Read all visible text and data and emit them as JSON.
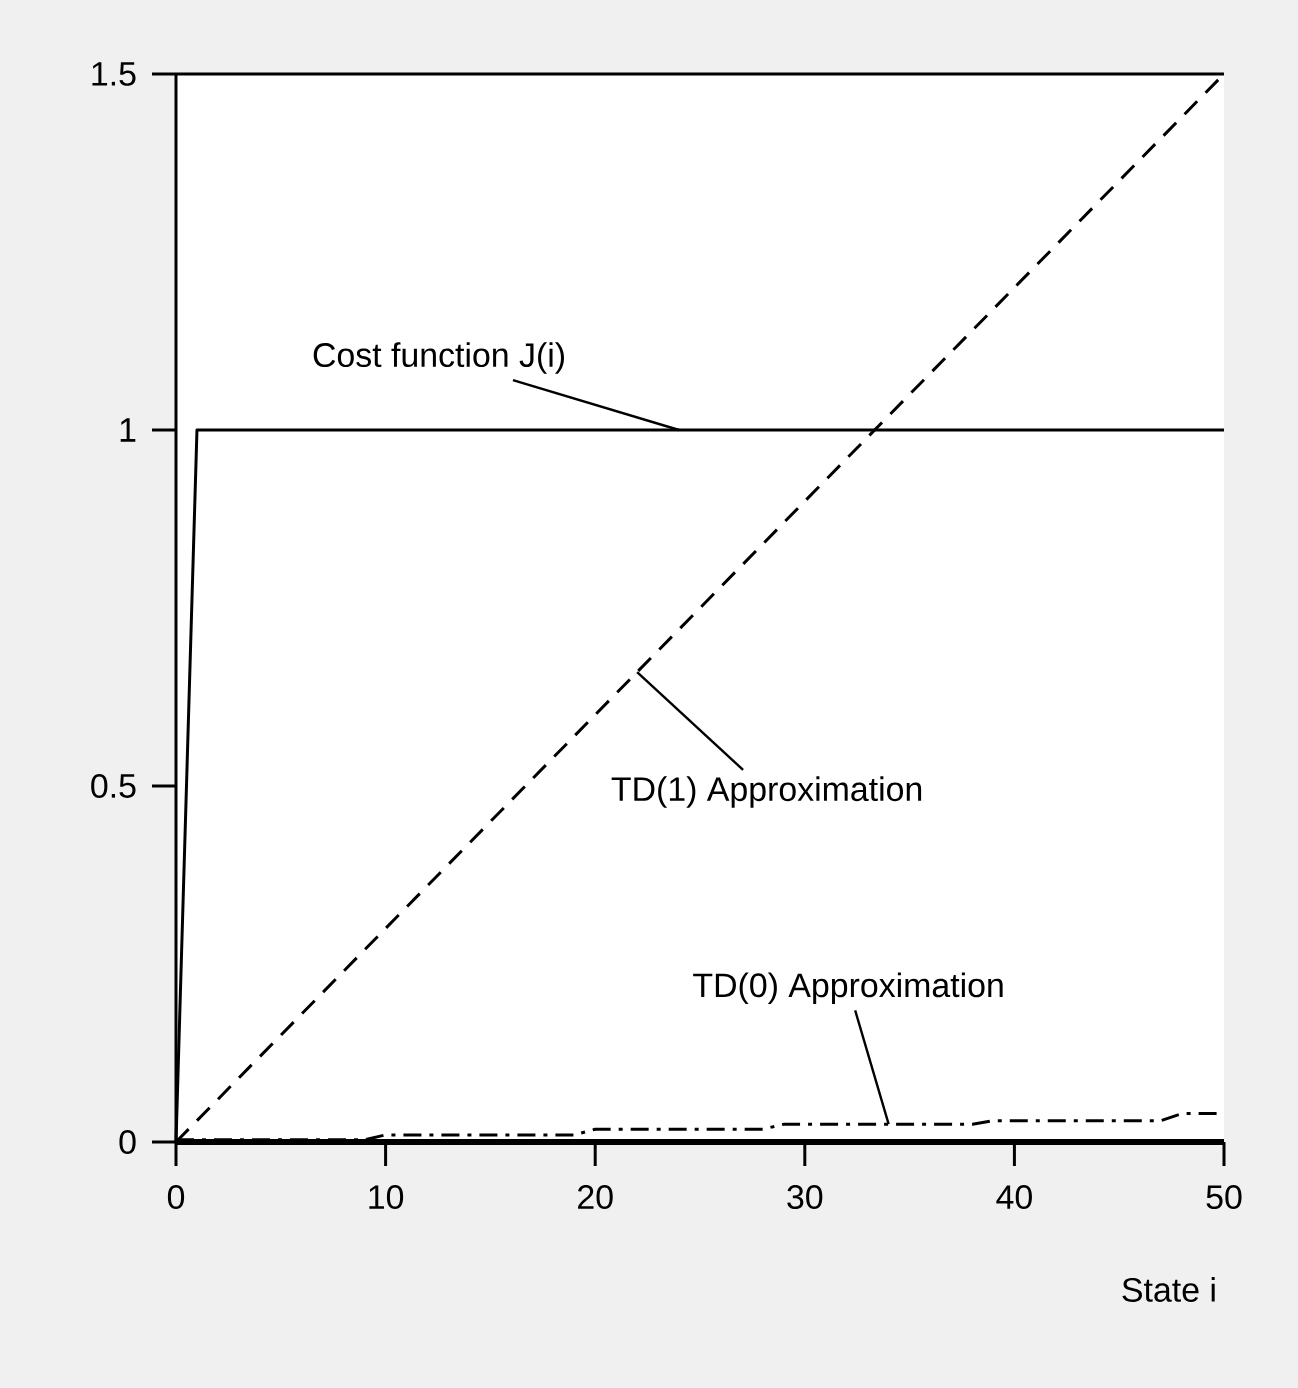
{
  "chart_data": {
    "type": "line",
    "xlabel": "State i",
    "xlim": [
      0,
      50
    ],
    "ylim": [
      0,
      1.5
    ],
    "xticks": [
      0,
      10,
      20,
      30,
      40,
      50
    ],
    "yticks": [
      0,
      {
        "value": 0.5,
        "label": "0.5"
      },
      1,
      1.5
    ],
    "grid": false,
    "legend": false,
    "marker": "none",
    "series": [
      {
        "name": "Cost function J(i)",
        "color": "#000000",
        "line_style": "solid",
        "x": [
          0,
          1,
          50
        ],
        "values": [
          0,
          1,
          1
        ]
      },
      {
        "name": "TD(1) Approximation",
        "color": "#000000",
        "line_style": "dashed",
        "x": [
          0,
          50
        ],
        "values": [
          0,
          1.5
        ]
      },
      {
        "name": "TD(0) Approximation",
        "color": "#000000",
        "line_style": "dashdot",
        "x": [
          0,
          9,
          10,
          19,
          20,
          28,
          29,
          38,
          39,
          47,
          48,
          50
        ],
        "values": [
          0.003,
          0.003,
          0.01,
          0.01,
          0.018,
          0.018,
          0.025,
          0.025,
          0.03,
          0.03,
          0.04,
          0.04
        ]
      }
    ]
  }
}
